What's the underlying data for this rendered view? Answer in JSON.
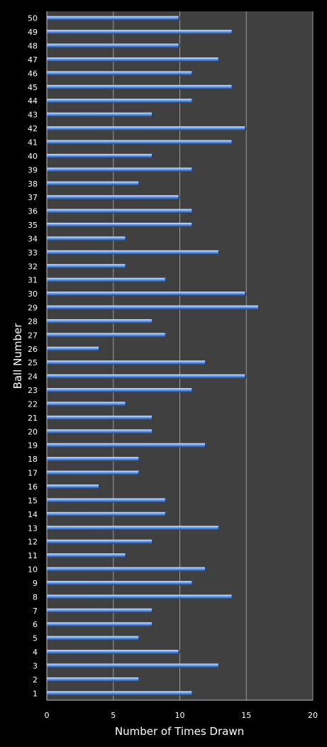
{
  "chart_data": {
    "type": "bar",
    "orientation": "horizontal",
    "categories": [
      "1",
      "2",
      "3",
      "4",
      "5",
      "6",
      "7",
      "8",
      "9",
      "10",
      "11",
      "12",
      "13",
      "14",
      "15",
      "16",
      "17",
      "18",
      "19",
      "20",
      "21",
      "22",
      "23",
      "24",
      "25",
      "26",
      "27",
      "28",
      "29",
      "30",
      "31",
      "32",
      "33",
      "34",
      "35",
      "36",
      "37",
      "38",
      "39",
      "40",
      "41",
      "42",
      "43",
      "44",
      "45",
      "46",
      "47",
      "48",
      "49",
      "50"
    ],
    "values": [
      11,
      7,
      13,
      10,
      7,
      8,
      8,
      14,
      11,
      12,
      6,
      8,
      13,
      9,
      9,
      4,
      7,
      7,
      12,
      8,
      8,
      6,
      11,
      15,
      12,
      4,
      9,
      8,
      16,
      15,
      9,
      6,
      13,
      6,
      11,
      11,
      10,
      7,
      11,
      8,
      14,
      15,
      8,
      11,
      14,
      11,
      13,
      10,
      14,
      10
    ],
    "xlabel": "Number of Times Drawn",
    "ylabel": "Ball Number",
    "xlim": [
      0,
      20
    ],
    "xticks": [
      0,
      5,
      10,
      15,
      20
    ],
    "grid": true,
    "colors": {
      "background": "#000000",
      "plot_area": "#404040",
      "bar_fill": "#4a7fd0",
      "bar_highlight": "#a8c8f4",
      "bar_shadow": "#1e3f78",
      "gridline": "#9a9a9a",
      "text": "#ffffff"
    }
  }
}
